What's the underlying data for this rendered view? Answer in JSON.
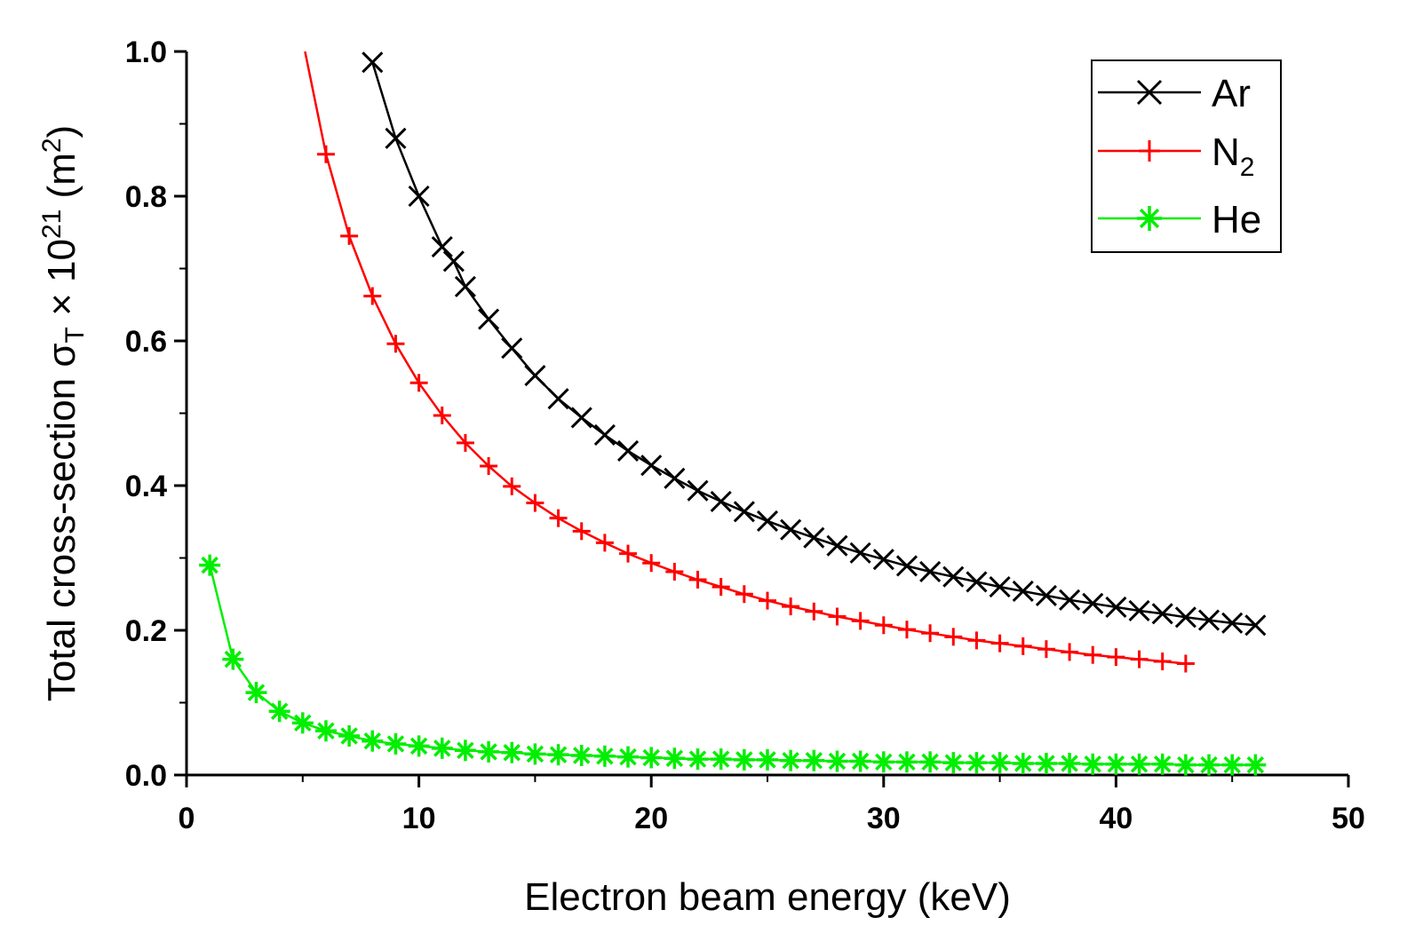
{
  "chart_data": {
    "type": "line",
    "title": "",
    "xlabel": "Electron beam energy (keV)",
    "ylabel": {
      "prefix": "Total cross-section σ",
      "sub": "T",
      "mid": " × 10",
      "sup1": "21",
      "unit_open": " (m",
      "sup2": "2",
      "unit_close": ")"
    },
    "xlim": [
      0,
      50
    ],
    "ylim": [
      0,
      1.0
    ],
    "xticks": [
      0,
      10,
      20,
      30,
      40,
      50
    ],
    "xtick_labels": [
      "0",
      "10",
      "20",
      "30",
      "40",
      "50"
    ],
    "yticks": [
      0.0,
      0.2,
      0.4,
      0.6,
      0.8,
      1.0
    ],
    "ytick_labels": [
      "0.0",
      "0.2",
      "0.4",
      "0.6",
      "0.8",
      "1.0"
    ],
    "grid": false,
    "legend_position": "top-right",
    "series": [
      {
        "name": "Ar",
        "name_sub": "",
        "color": "#000000",
        "marker": "x",
        "x": [
          8,
          9,
          10,
          11,
          11.5,
          12,
          13,
          14,
          15,
          16,
          17,
          18,
          19,
          20,
          21,
          22,
          23,
          24,
          25,
          26,
          27,
          28,
          29,
          30,
          31,
          32,
          33,
          34,
          35,
          36,
          37,
          38,
          39,
          40,
          41,
          42,
          43,
          44,
          45,
          46
        ],
        "y": [
          0.985,
          0.88,
          0.8,
          0.73,
          0.71,
          0.675,
          0.63,
          0.59,
          0.552,
          0.52,
          0.494,
          0.47,
          0.448,
          0.428,
          0.41,
          0.393,
          0.378,
          0.364,
          0.351,
          0.339,
          0.328,
          0.317,
          0.307,
          0.298,
          0.289,
          0.281,
          0.274,
          0.267,
          0.26,
          0.254,
          0.248,
          0.242,
          0.237,
          0.232,
          0.227,
          0.223,
          0.218,
          0.214,
          0.21,
          0.207
        ]
      },
      {
        "name": "N",
        "name_sub": "2",
        "color": "#ff0000",
        "marker": "+",
        "curve_start": [
          5.1,
          1.0
        ],
        "x": [
          6,
          7,
          8,
          9,
          10,
          11,
          12,
          13,
          14,
          15,
          16,
          17,
          18,
          19,
          20,
          21,
          22,
          23,
          24,
          25,
          26,
          27,
          28,
          29,
          30,
          31,
          32,
          33,
          34,
          35,
          36,
          37,
          38,
          39,
          40,
          41,
          42,
          43
        ],
        "y": [
          0.858,
          0.745,
          0.662,
          0.596,
          0.542,
          0.497,
          0.459,
          0.427,
          0.399,
          0.376,
          0.355,
          0.337,
          0.321,
          0.306,
          0.293,
          0.281,
          0.27,
          0.26,
          0.25,
          0.241,
          0.233,
          0.226,
          0.219,
          0.213,
          0.207,
          0.201,
          0.196,
          0.191,
          0.186,
          0.182,
          0.178,
          0.174,
          0.17,
          0.166,
          0.163,
          0.16,
          0.157,
          0.154
        ]
      },
      {
        "name": "He",
        "name_sub": "",
        "color": "#00ee00",
        "marker": "asterisk",
        "x": [
          1,
          2,
          3,
          4,
          5,
          6,
          7,
          8,
          9,
          10,
          11,
          12,
          13,
          14,
          15,
          16,
          17,
          18,
          19,
          20,
          21,
          22,
          23,
          24,
          25,
          26,
          27,
          28,
          29,
          30,
          31,
          32,
          33,
          34,
          35,
          36,
          37,
          38,
          39,
          40,
          41,
          42,
          43,
          44,
          45,
          46
        ],
        "y": [
          0.29,
          0.16,
          0.114,
          0.088,
          0.072,
          0.061,
          0.054,
          0.047,
          0.043,
          0.04,
          0.037,
          0.034,
          0.032,
          0.031,
          0.029,
          0.028,
          0.027,
          0.026,
          0.025,
          0.024,
          0.023,
          0.022,
          0.022,
          0.021,
          0.021,
          0.02,
          0.02,
          0.019,
          0.019,
          0.018,
          0.018,
          0.018,
          0.017,
          0.017,
          0.017,
          0.016,
          0.016,
          0.016,
          0.015,
          0.015,
          0.015,
          0.015,
          0.014,
          0.014,
          0.014,
          0.014
        ]
      }
    ]
  }
}
